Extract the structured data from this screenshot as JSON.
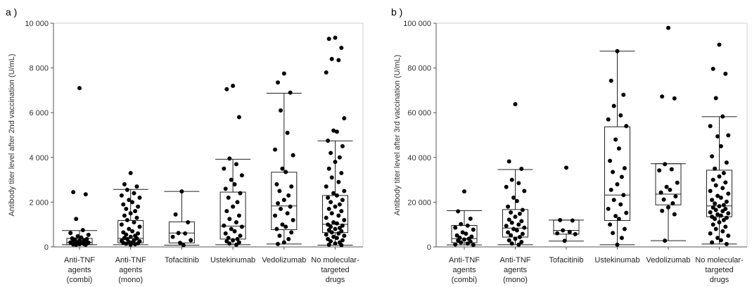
{
  "chart_data": [
    {
      "type": "box",
      "panel_label": "a )",
      "ylabel": "Antibody titer level after 2nd vaccination (U/mL)",
      "xlabel": "",
      "ylim": [
        0,
        10000
      ],
      "yticks": [
        0,
        2000,
        4000,
        6000,
        8000,
        10000
      ],
      "ytick_labels": [
        "0",
        "2 000",
        "4 000",
        "6 000",
        "8 000",
        "10 000"
      ],
      "categories": [
        [
          "Anti-TNF",
          "agents",
          "(combi)"
        ],
        [
          "Anti-TNF",
          "agents",
          "(mono)"
        ],
        [
          "Tofacitinib"
        ],
        [
          "Ustekinumab"
        ],
        [
          "Vedolizumab"
        ],
        [
          "No molecular-",
          "targeted",
          "drugs"
        ]
      ],
      "boxes": [
        {
          "whisker_low": 100,
          "q1": 100,
          "median": 200,
          "q3": 380,
          "whisker_high": 730
        },
        {
          "whisker_low": 100,
          "q1": 180,
          "median": 380,
          "q3": 1180,
          "whisker_high": 2570
        },
        {
          "whisker_low": 80,
          "q1": 180,
          "median": 620,
          "q3": 1120,
          "whisker_high": 2480
        },
        {
          "whisker_low": 100,
          "q1": 350,
          "median": 930,
          "q3": 2450,
          "whisker_high": 3920
        },
        {
          "whisker_low": 130,
          "q1": 770,
          "median": 1830,
          "q3": 3340,
          "whisker_high": 6870
        },
        {
          "whisker_low": 80,
          "q1": 640,
          "median": 1010,
          "q3": 2300,
          "whisker_high": 4740
        }
      ],
      "points": [
        [
          7100,
          2450,
          2350,
          1250,
          750,
          620,
          540,
          480,
          420,
          380,
          350,
          330,
          300,
          280,
          260,
          240,
          220,
          210,
          200,
          190,
          180,
          170,
          160,
          150,
          140,
          130,
          120,
          110,
          100,
          100
        ],
        [
          3300,
          2800,
          2700,
          2550,
          2400,
          2300,
          2200,
          2100,
          2000,
          1900,
          1800,
          1700,
          1600,
          1500,
          1400,
          1300,
          1200,
          1100,
          1000,
          900,
          800,
          700,
          650,
          600,
          550,
          500,
          450,
          400,
          380,
          350,
          300,
          280,
          250,
          220,
          200,
          180,
          160,
          140,
          120,
          100
        ],
        [
          2480,
          1450,
          1100,
          620,
          600,
          450,
          300,
          180,
          80
        ],
        [
          7200,
          7050,
          5800,
          3950,
          3700,
          3500,
          3200,
          3000,
          2800,
          2600,
          2400,
          2200,
          2000,
          1800,
          1600,
          1400,
          1250,
          1100,
          950,
          900,
          800,
          700,
          600,
          500,
          400,
          350,
          300,
          250,
          200,
          150,
          100
        ],
        [
          7750,
          7350,
          6900,
          6100,
          5100,
          4350,
          4100,
          3500,
          3350,
          2800,
          2700,
          2500,
          2300,
          2100,
          1950,
          1800,
          1700,
          1500,
          1400,
          1200,
          1000,
          900,
          800,
          650,
          500,
          350,
          200,
          130
        ],
        [
          9350,
          9300,
          8900,
          8400,
          8350,
          7800,
          5750,
          5200,
          5150,
          4750,
          4500,
          4200,
          4000,
          3800,
          3500,
          3300,
          3100,
          2900,
          2700,
          2500,
          2400,
          2300,
          2200,
          2100,
          2000,
          1900,
          1800,
          1700,
          1600,
          1500,
          1400,
          1300,
          1200,
          1100,
          1050,
          1000,
          950,
          900,
          850,
          800,
          750,
          700,
          650,
          600,
          550,
          500,
          450,
          400,
          350,
          300,
          250,
          200,
          150,
          100,
          80
        ]
      ]
    },
    {
      "type": "box",
      "panel_label": "b )",
      "ylabel": "Antibody titer level after 3rd vaccination (U/mL)",
      "xlabel": "",
      "ylim": [
        0,
        100000
      ],
      "yticks": [
        0,
        20000,
        40000,
        60000,
        80000,
        100000
      ],
      "ytick_labels": [
        "0",
        "20 000",
        "40 000",
        "60 000",
        "80 000",
        "100 000"
      ],
      "categories": [
        [
          "Anti-TNF",
          "agents",
          "(combi)"
        ],
        [
          "Anti-TNF",
          "agents",
          "(mono)"
        ],
        [
          "Tofacitinib"
        ],
        [
          "Ustekinumab"
        ],
        [
          "Vedolizumab"
        ],
        [
          "No molecular-",
          "targeted",
          "drugs"
        ]
      ],
      "boxes": [
        {
          "whisker_low": 900,
          "q1": 1900,
          "median": 3700,
          "q3": 9600,
          "whisker_high": 16200
        },
        {
          "whisker_low": 1000,
          "q1": 4400,
          "median": 8400,
          "q3": 16700,
          "whisker_high": 34600
        },
        {
          "whisker_low": 2600,
          "q1": 5700,
          "median": 7400,
          "q3": 12000,
          "whisker_high": 12000
        },
        {
          "whisker_low": 1000,
          "q1": 11800,
          "median": 23200,
          "q3": 53700,
          "whisker_high": 87500
        },
        {
          "whisker_low": 2800,
          "q1": 18800,
          "median": 23600,
          "q3": 37200,
          "whisker_high": 37200
        },
        {
          "whisker_low": 1300,
          "q1": 13500,
          "median": 18300,
          "q3": 34300,
          "whisker_high": 58200
        }
      ],
      "points": [
        [
          24800,
          15900,
          12600,
          10200,
          9500,
          8600,
          7700,
          6500,
          5900,
          5100,
          4600,
          4100,
          3600,
          3300,
          2900,
          2400,
          2000,
          1500,
          1100,
          900
        ],
        [
          63800,
          38200,
          34900,
          30000,
          28500,
          26800,
          25000,
          22000,
          20500,
          18000,
          16500,
          15400,
          14800,
          13500,
          12200,
          11500,
          10800,
          10000,
          9400,
          8600,
          8000,
          7400,
          6500,
          5800,
          5200,
          4400,
          3600,
          2900,
          2200,
          1500,
          1000
        ],
        [
          35400,
          12000,
          11800,
          7400,
          6700,
          6100,
          5700,
          2700
        ],
        [
          87500,
          74300,
          68000,
          63000,
          58800,
          57000,
          54000,
          48000,
          44000,
          38500,
          35200,
          33500,
          31300,
          28000,
          25500,
          23200,
          21000,
          19000,
          17000,
          15200,
          13800,
          12500,
          10000,
          8000,
          6200,
          4000,
          1000
        ],
        [
          97900,
          67200,
          66400,
          37000,
          34700,
          34200,
          28700,
          26800,
          25500,
          24300,
          22600,
          21200,
          19500,
          17700,
          16100,
          14600,
          2800
        ],
        [
          90400,
          79600,
          77400,
          66500,
          58300,
          54000,
          49900,
          49400,
          45000,
          40500,
          37700,
          35000,
          33000,
          31500,
          30000,
          28800,
          27500,
          26300,
          25000,
          23800,
          22800,
          22000,
          21000,
          20200,
          19400,
          18700,
          18200,
          17600,
          17000,
          16500,
          16000,
          15500,
          15000,
          14500,
          14000,
          13500,
          13000,
          12500,
          12000,
          11000,
          10000,
          9000,
          8000,
          7000,
          6000,
          5000,
          4000,
          3000,
          2000,
          1300
        ]
      ]
    }
  ]
}
